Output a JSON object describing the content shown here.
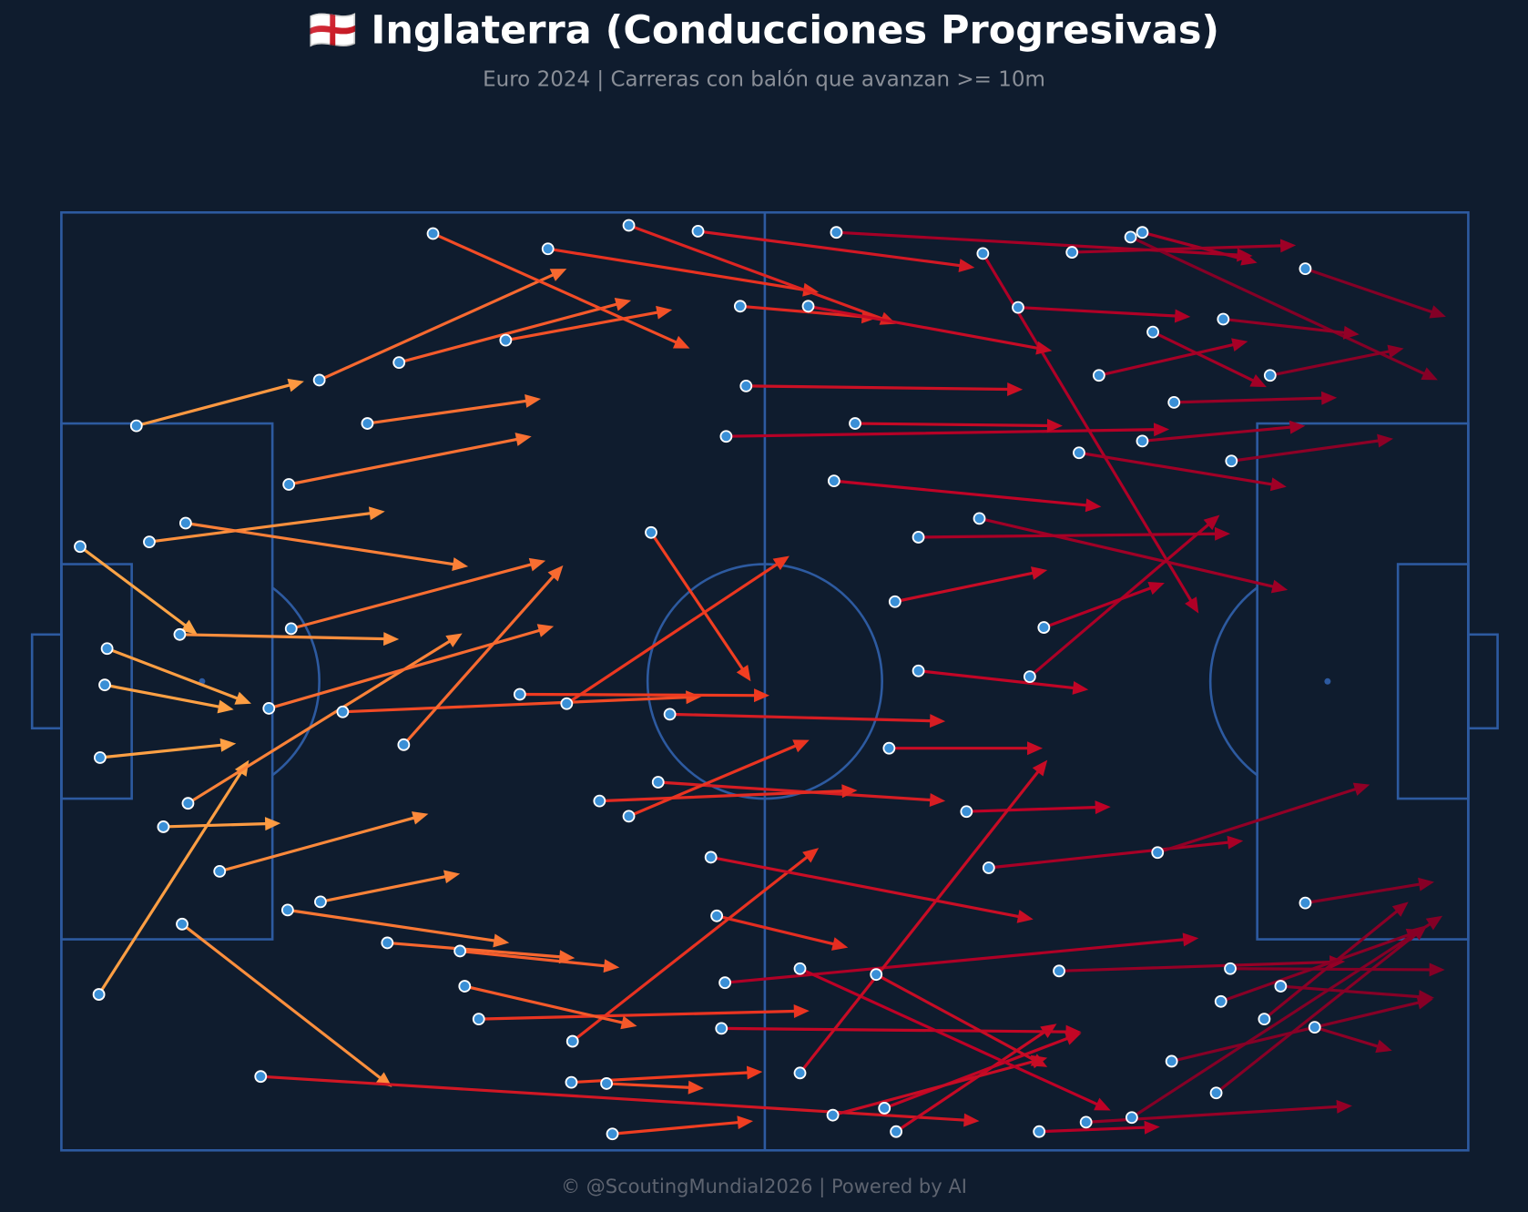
{
  "chart_data": {
    "type": "pitch-arrows",
    "title": "🏴󠁧󠁢󠁥󠁮󠁧󠁿 Inglaterra (Conducciones Progresivas)",
    "subtitle": "Euro 2024 | Carreras con balón que avanzan >= 10m",
    "footer": "© @ScoutingMundial2026 | Powered by AI",
    "xlim": [
      0,
      120
    ],
    "ylim": [
      0,
      80
    ],
    "background": "#0f1c2e",
    "line_color": "#2d5aa0",
    "dot_color": "#3a8fd6",
    "cmap": [
      "#feb24c",
      "#fd8d3c",
      "#f03b20",
      "#bd0026",
      "#800026"
    ],
    "x": [
      6.4,
      3.2,
      10.3,
      17.0,
      1.6,
      22.0,
      28.8,
      37.9,
      31.7,
      41.5,
      48.4,
      54.3,
      66.1,
      92.2,
      106.1,
      91.2,
      86.2,
      78.6,
      103.1,
      99.8,
      99.1,
      94.9,
      92.2,
      86.8,
      78.3,
      73.1,
      82.6,
      83.8,
      71.1,
      73.1,
      70.6,
      77.2,
      79.1,
      93.5,
      106.1,
      99.7,
      106.9,
      104.0,
      102.6,
      98.5,
      91.3,
      83.4,
      87.4,
      71.2,
      70.2,
      65.8,
      47.0,
      43.5,
      46.5,
      43.6,
      35.6,
      34.4,
      34.0,
      27.8,
      22.1,
      19.3,
      13.5,
      8.7,
      10.8,
      3.3,
      3.9,
      3.7,
      10.1,
      7.5,
      10.6,
      19.4,
      26.1,
      19.6,
      17.7,
      24.0,
      29.2,
      43.1,
      39.1,
      50.3,
      56.7,
      57.9,
      63.7,
      58.4,
      67.7,
      65.9,
      55.4,
      56.3,
      56.6,
      63.0,
      63.0,
      69.5,
      55.9,
      51.9,
      50.9,
      45.9,
      48.4,
      85.1,
      98.9,
      94.7,
      88.5,
      81.6,
      93.1
    ],
    "y": [
      18.2,
      66.7,
      60.7,
      73.7,
      28.5,
      14.3,
      12.8,
      10.9,
      1.8,
      3.1,
      1.1,
      1.6,
      1.7,
      1.7,
      4.8,
      2.1,
      3.4,
      3.5,
      13.9,
      21.2,
      9.1,
      16.2,
      19.5,
      20.5,
      26.1,
      27.7,
      39.6,
      35.4,
      33.2,
      39.1,
      45.7,
      51.1,
      55.9,
      54.6,
      58.9,
      64.5,
      69.5,
      66.0,
      68.8,
      75.1,
      77.2,
      78.4,
      77.6,
      78.4,
      76.4,
      77.0,
      78.6,
      74.2,
      74.3,
      70.7,
      68.8,
      66.0,
      63.0,
      62.3,
      58.8,
      59.5,
      56.2,
      52.4,
      50.4,
      46.5,
      37.2,
      40.3,
      36.0,
      28.1,
      26.5,
      23.2,
      18.0,
      35.5,
      42.3,
      42.6,
      45.4,
      41.9,
      41.1,
      27.3,
      19.1,
      8.0,
      8.0,
      14.8,
      18.0,
      22.9,
      55.0,
      69.6,
      65.7,
      64.5,
      73.4,
      65.0,
      60.0,
      42.8,
      48.6,
      50.2,
      51.5,
      64.7,
      67.3,
      72.4,
      13.9,
      8.1,
      10.2
    ],
    "end_x": [
      20.7,
      16.0,
      28.2,
      78.3,
      11.6,
      43.1,
      48.6,
      52.1,
      53.6,
      64.6,
      71.2,
      77.9,
      101.6,
      102.0,
      118.1,
      117.4,
      105.3,
      97.0,
      114.5,
      113.6,
      110.7,
      108.8,
      106.1,
      104.5,
      104.6,
      99.7,
      98.8,
      94.1,
      84.1,
      87.6,
      83.7,
      89.5,
      100.8,
      111.6,
      117.1,
      118.0,
      113.5,
      117.1,
      114.9,
      116.5,
      117.8,
      93.7,
      110.1,
      84.9,
      87.0,
      84.1,
      59.0,
      59.8,
      54.8,
      64.6,
      63.8,
      49.1,
      47.6,
      43.8,
      34.0,
      38.2,
      31.3,
      18.7,
      34.2,
      14.9,
      16.2,
      14.7,
      28.8,
      27.6,
      34.7,
      40.1,
      40.9,
      41.3,
      42.0,
      54.6,
      42.8,
      62.1,
      60.4,
      58.8,
      94.5,
      69.6,
      84.5,
      82.0,
      85.4,
      88.7,
      82.9,
      87.0,
      97.0,
      89.5,
      84.1,
      84.1,
      67.1,
      75.4,
      75.4,
      67.9,
      63.8,
      109.5,
      116.1,
      117.0,
      101.2,
      96.3,
      102.8
    ],
    "end_y": [
      14.4,
      46.7,
      74.6,
      77.5,
      36.0,
      4.8,
      7.5,
      8.3,
      11.6,
      6.8,
      9.5,
      4.7,
      3.7,
      4.3,
      8.9,
      14.3,
      2.8,
      34.2,
      11.6,
      19.3,
      10.4,
      15.8,
      18.2,
      23.4,
      32.2,
      27.4,
      25.8,
      31.6,
      30.5,
      40.7,
      45.7,
      50.7,
      53.6,
      48.8,
      57.1,
      64.6,
      71.5,
      67.0,
      58.8,
      60.8,
      60.0,
      78.0,
      76.2,
      69.2,
      70.0,
      72.1,
      77.5,
      73.3,
      74.7,
      54.2,
      68.1,
      69.4,
      64.4,
      63.6,
      56.4,
      62.3,
      51.3,
      52.1,
      35.9,
      45.3,
      41.9,
      42.4,
      36.4,
      25.5,
      30.2,
      19.1,
      15.9,
      29.7,
      35.3,
      41.3,
      30.1,
      29.3,
      41.2,
      40.0,
      18.5,
      9.0,
      11.8,
      15.1,
      18.2,
      25.1,
      60.3,
      69.9,
      61.9,
      76.6,
      46.7,
      72.9,
      62.7,
      43.4,
      50.2,
      49.3,
      45.0,
      63.9,
      61.2,
      67.1,
      11.0,
      8.9,
      14.9
    ]
  }
}
